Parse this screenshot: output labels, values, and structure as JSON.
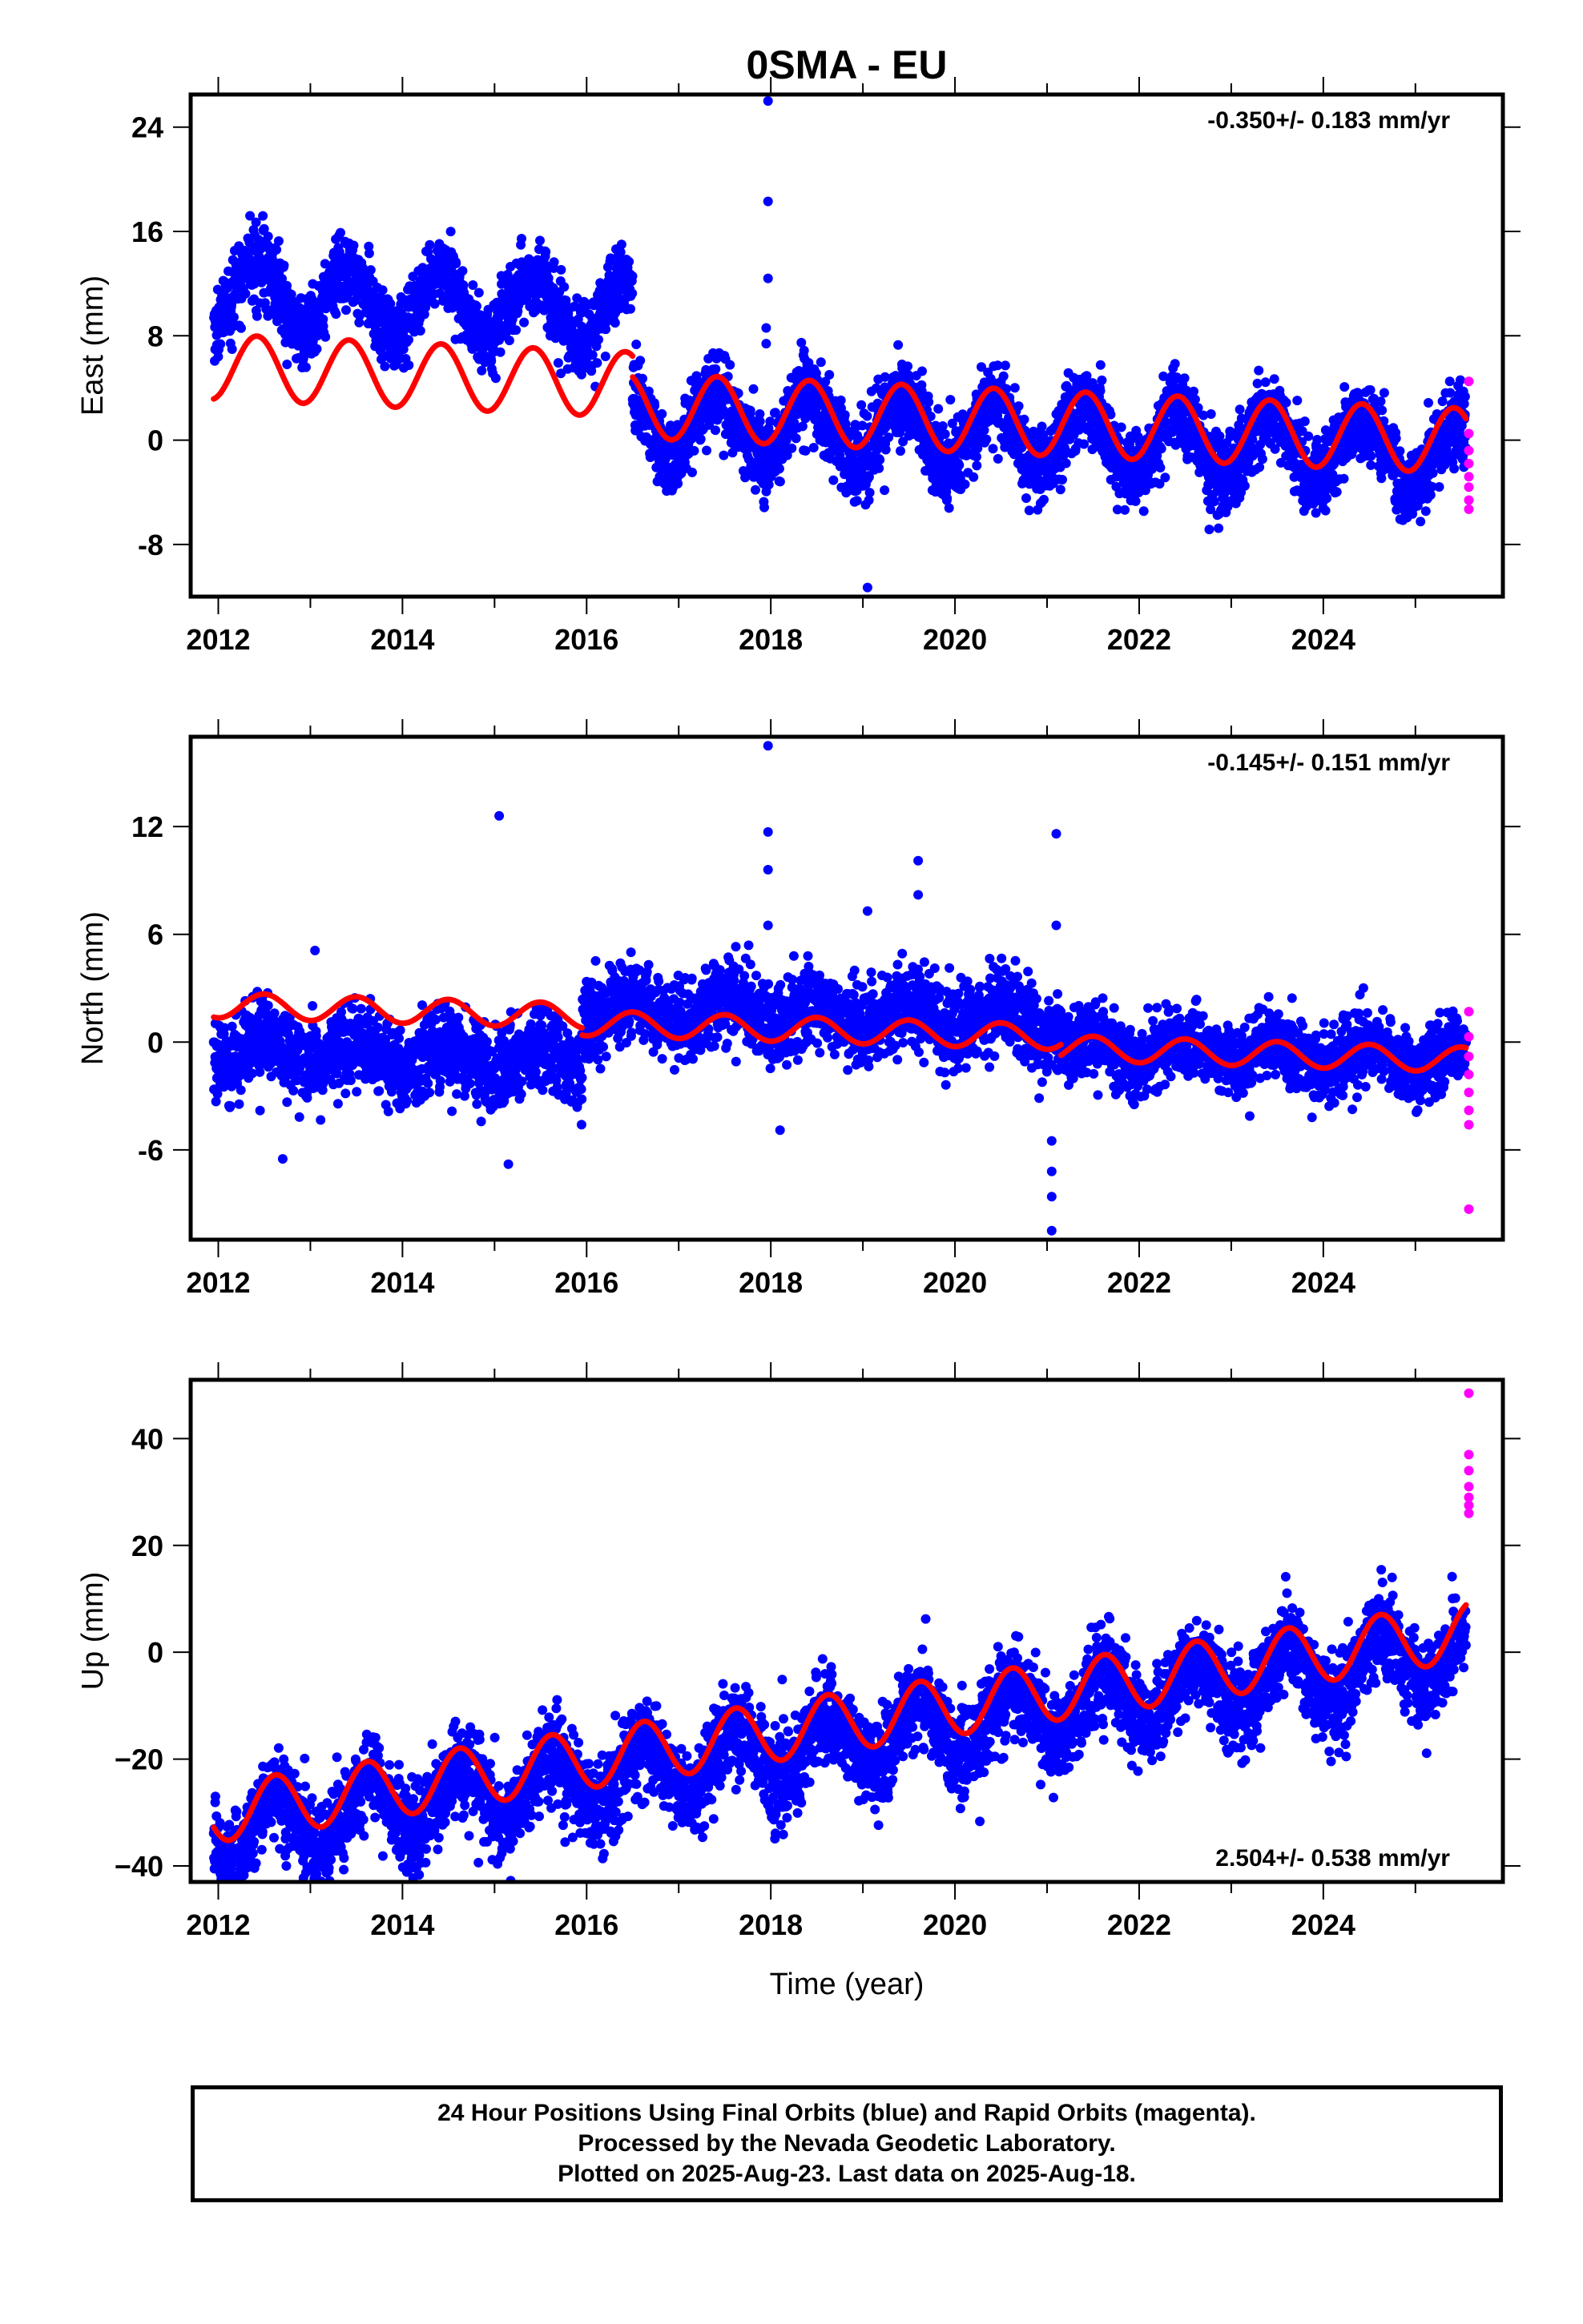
{
  "figure": {
    "title": "0SMA - EU"
  },
  "colors": {
    "final_orbits": "#0000ff",
    "rapid_orbits": "#ff00ff",
    "model_fit": "#ff0000",
    "frame": "#000000"
  },
  "chart_data": [
    {
      "type": "scatter",
      "component": "East",
      "ylabel": "East (mm)",
      "xlabel": "",
      "xlim": [
        2011.7,
        2025.95
      ],
      "ylim": [
        -12,
        26.5
      ],
      "x_ticks": [
        2012,
        2014,
        2016,
        2018,
        2020,
        2022,
        2024
      ],
      "x_tick_labels": [
        "2012",
        "2014",
        "2016",
        "2018",
        "2020",
        "2022",
        "2024"
      ],
      "y_ticks": [
        -8,
        0,
        8,
        16,
        24
      ],
      "y_tick_labels": [
        "-8",
        "0",
        "8",
        "16",
        "24"
      ],
      "rate_annotation": "-0.350+/- 0.183 mm/yr",
      "rate_position": "top-right",
      "final_orbits_trend": [
        {
          "t0": 2011.95,
          "t1": 2016.5,
          "offset": 9.1,
          "slope": -0.3,
          "amplitude": 2.5,
          "peak_phase": 0.42,
          "noise": 1.4
        },
        {
          "t0": 2016.5,
          "t1": 2025.55,
          "offset": 0.8,
          "slope": -0.3,
          "amplitude": 2.5,
          "peak_phase": 0.42,
          "noise": 1.5
        }
      ],
      "rapid_orbits": [
        {
          "x": 2025.58,
          "y": 4.5
        },
        {
          "x": 2025.58,
          "y": 0.5
        },
        {
          "x": 2025.58,
          "y": -0.8
        },
        {
          "x": 2025.58,
          "y": -1.8
        },
        {
          "x": 2025.58,
          "y": -2.8
        },
        {
          "x": 2025.58,
          "y": -3.6
        },
        {
          "x": 2025.58,
          "y": -4.6
        },
        {
          "x": 2025.58,
          "y": -5.3
        }
      ],
      "outliers": [
        {
          "x": 2017.97,
          "y": 26
        },
        {
          "x": 2017.97,
          "y": 18.3
        },
        {
          "x": 2017.97,
          "y": 12.4
        },
        {
          "x": 2017.95,
          "y": 8.6
        },
        {
          "x": 2017.95,
          "y": 7.4
        },
        {
          "x": 2019.05,
          "y": -11.3
        }
      ],
      "model_fit": [
        {
          "t0": 2011.95,
          "t1": 2016.5,
          "offset": 3.5,
          "slope": -0.3,
          "amplitude": 2.5,
          "peak_phase": 0.42
        },
        {
          "t0": 2016.5,
          "t1": 2025.55,
          "offset": 1.9,
          "slope": -0.3,
          "amplitude": 2.5,
          "peak_phase": 0.42
        }
      ]
    },
    {
      "type": "scatter",
      "component": "North",
      "ylabel": "North (mm)",
      "xlabel": "",
      "xlim": [
        2011.7,
        2025.95
      ],
      "ylim": [
        -11,
        17
      ],
      "x_ticks": [
        2012,
        2014,
        2016,
        2018,
        2020,
        2022,
        2024
      ],
      "x_tick_labels": [
        "2012",
        "2014",
        "2016",
        "2018",
        "2020",
        "2022",
        "2024"
      ],
      "y_ticks": [
        -6,
        0,
        6,
        12
      ],
      "y_tick_labels": [
        "-6",
        "0",
        "6",
        "12"
      ],
      "rate_annotation": "-0.145+/- 0.151 mm/yr",
      "rate_position": "top-right",
      "final_orbits_trend": [
        {
          "t0": 2011.95,
          "t1": 2015.95,
          "offset": -1.5,
          "slope": -0.15,
          "amplitude": 0.7,
          "peak_phase": 0.5,
          "noise": 1.1
        },
        {
          "t0": 2015.95,
          "t1": 2021.15,
          "offset": 1.5,
          "slope": -0.15,
          "amplitude": 0.7,
          "peak_phase": 0.5,
          "noise": 1.1
        },
        {
          "t0": 2021.15,
          "t1": 2025.55,
          "offset": 0.0,
          "slope": -0.15,
          "amplitude": 0.7,
          "peak_phase": 0.5,
          "noise": 1.0
        }
      ],
      "rapid_orbits": [
        {
          "x": 2025.58,
          "y": 1.7
        },
        {
          "x": 2025.58,
          "y": 0.3
        },
        {
          "x": 2025.58,
          "y": -0.8
        },
        {
          "x": 2025.58,
          "y": -1.8
        },
        {
          "x": 2025.58,
          "y": -2.8
        },
        {
          "x": 2025.58,
          "y": -3.8
        },
        {
          "x": 2025.58,
          "y": -4.6
        },
        {
          "x": 2025.58,
          "y": -9.3
        }
      ],
      "outliers": [
        {
          "x": 2015.05,
          "y": 12.6
        },
        {
          "x": 2013.05,
          "y": 5.1
        },
        {
          "x": 2017.97,
          "y": 16.5
        },
        {
          "x": 2017.97,
          "y": 11.7
        },
        {
          "x": 2017.97,
          "y": 9.6
        },
        {
          "x": 2017.97,
          "y": 6.5
        },
        {
          "x": 2018.1,
          "y": -4.9
        },
        {
          "x": 2019.6,
          "y": 10.1
        },
        {
          "x": 2019.6,
          "y": 8.2
        },
        {
          "x": 2019.05,
          "y": 7.3
        },
        {
          "x": 2021.1,
          "y": 11.6
        },
        {
          "x": 2021.1,
          "y": 6.5
        },
        {
          "x": 2021.05,
          "y": -5.5
        },
        {
          "x": 2021.05,
          "y": -7.2
        },
        {
          "x": 2021.05,
          "y": -8.6
        },
        {
          "x": 2021.05,
          "y": -10.5
        },
        {
          "x": 2015.15,
          "y": -6.8
        },
        {
          "x": 2012.7,
          "y": -6.5
        }
      ],
      "model_fit": [
        {
          "t0": 2011.95,
          "t1": 2015.95,
          "offset": 1.0,
          "slope": -0.15,
          "amplitude": 0.7,
          "peak_phase": 0.5
        },
        {
          "t0": 2015.95,
          "t1": 2021.15,
          "offset": 0.6,
          "slope": -0.15,
          "amplitude": 0.7,
          "peak_phase": 0.5
        },
        {
          "t0": 2021.15,
          "t1": 2025.55,
          "offset": 0.0,
          "slope": -0.15,
          "amplitude": 0.7,
          "peak_phase": 0.5
        }
      ]
    },
    {
      "type": "scatter",
      "component": "Up",
      "ylabel": "Up (mm)",
      "xlabel": "Time (year)",
      "xlim": [
        2011.7,
        2025.95
      ],
      "ylim": [
        -43,
        51
      ],
      "x_ticks": [
        2012,
        2014,
        2016,
        2018,
        2020,
        2022,
        2024
      ],
      "x_tick_labels": [
        "2012",
        "2014",
        "2016",
        "2018",
        "2020",
        "2022",
        "2024"
      ],
      "y_ticks": [
        -40,
        -20,
        0,
        20,
        40
      ],
      "y_tick_labels": [
        "−40",
        "−20",
        "0",
        "20",
        "40"
      ],
      "rate_annotation": "2.504+/- 0.538 mm/yr",
      "rate_position": "bottom-right",
      "final_orbits_trend": [
        {
          "t0": 2011.95,
          "t1": 2025.55,
          "offset": -16,
          "slope": 2.5,
          "amplitude": 5.5,
          "peak_phase": 0.62,
          "noise": 4.2
        }
      ],
      "rapid_orbits": [
        {
          "x": 2025.58,
          "y": 48.5
        },
        {
          "x": 2025.58,
          "y": 37
        },
        {
          "x": 2025.58,
          "y": 34
        },
        {
          "x": 2025.58,
          "y": 31
        },
        {
          "x": 2025.58,
          "y": 29
        },
        {
          "x": 2025.58,
          "y": 27.5
        },
        {
          "x": 2025.58,
          "y": 26
        }
      ],
      "outliers": [
        {
          "x": 2012.05,
          "y": -42
        },
        {
          "x": 2012.05,
          "y": -38.5
        },
        {
          "x": 2013.1,
          "y": -35.5
        },
        {
          "x": 2015.1,
          "y": -32.5
        }
      ],
      "model_fit": [
        {
          "t0": 2011.95,
          "t1": 2025.55,
          "offset": -12.5,
          "slope": 2.5,
          "amplitude": 5.5,
          "peak_phase": 0.62
        }
      ]
    }
  ],
  "footer": {
    "line1": "24 Hour Positions Using Final Orbits (blue) and Rapid Orbits (magenta).",
    "line2": "Processed by the Nevada Geodetic Laboratory.",
    "line3": "Plotted on 2025-Aug-23. Last data on 2025-Aug-18."
  }
}
